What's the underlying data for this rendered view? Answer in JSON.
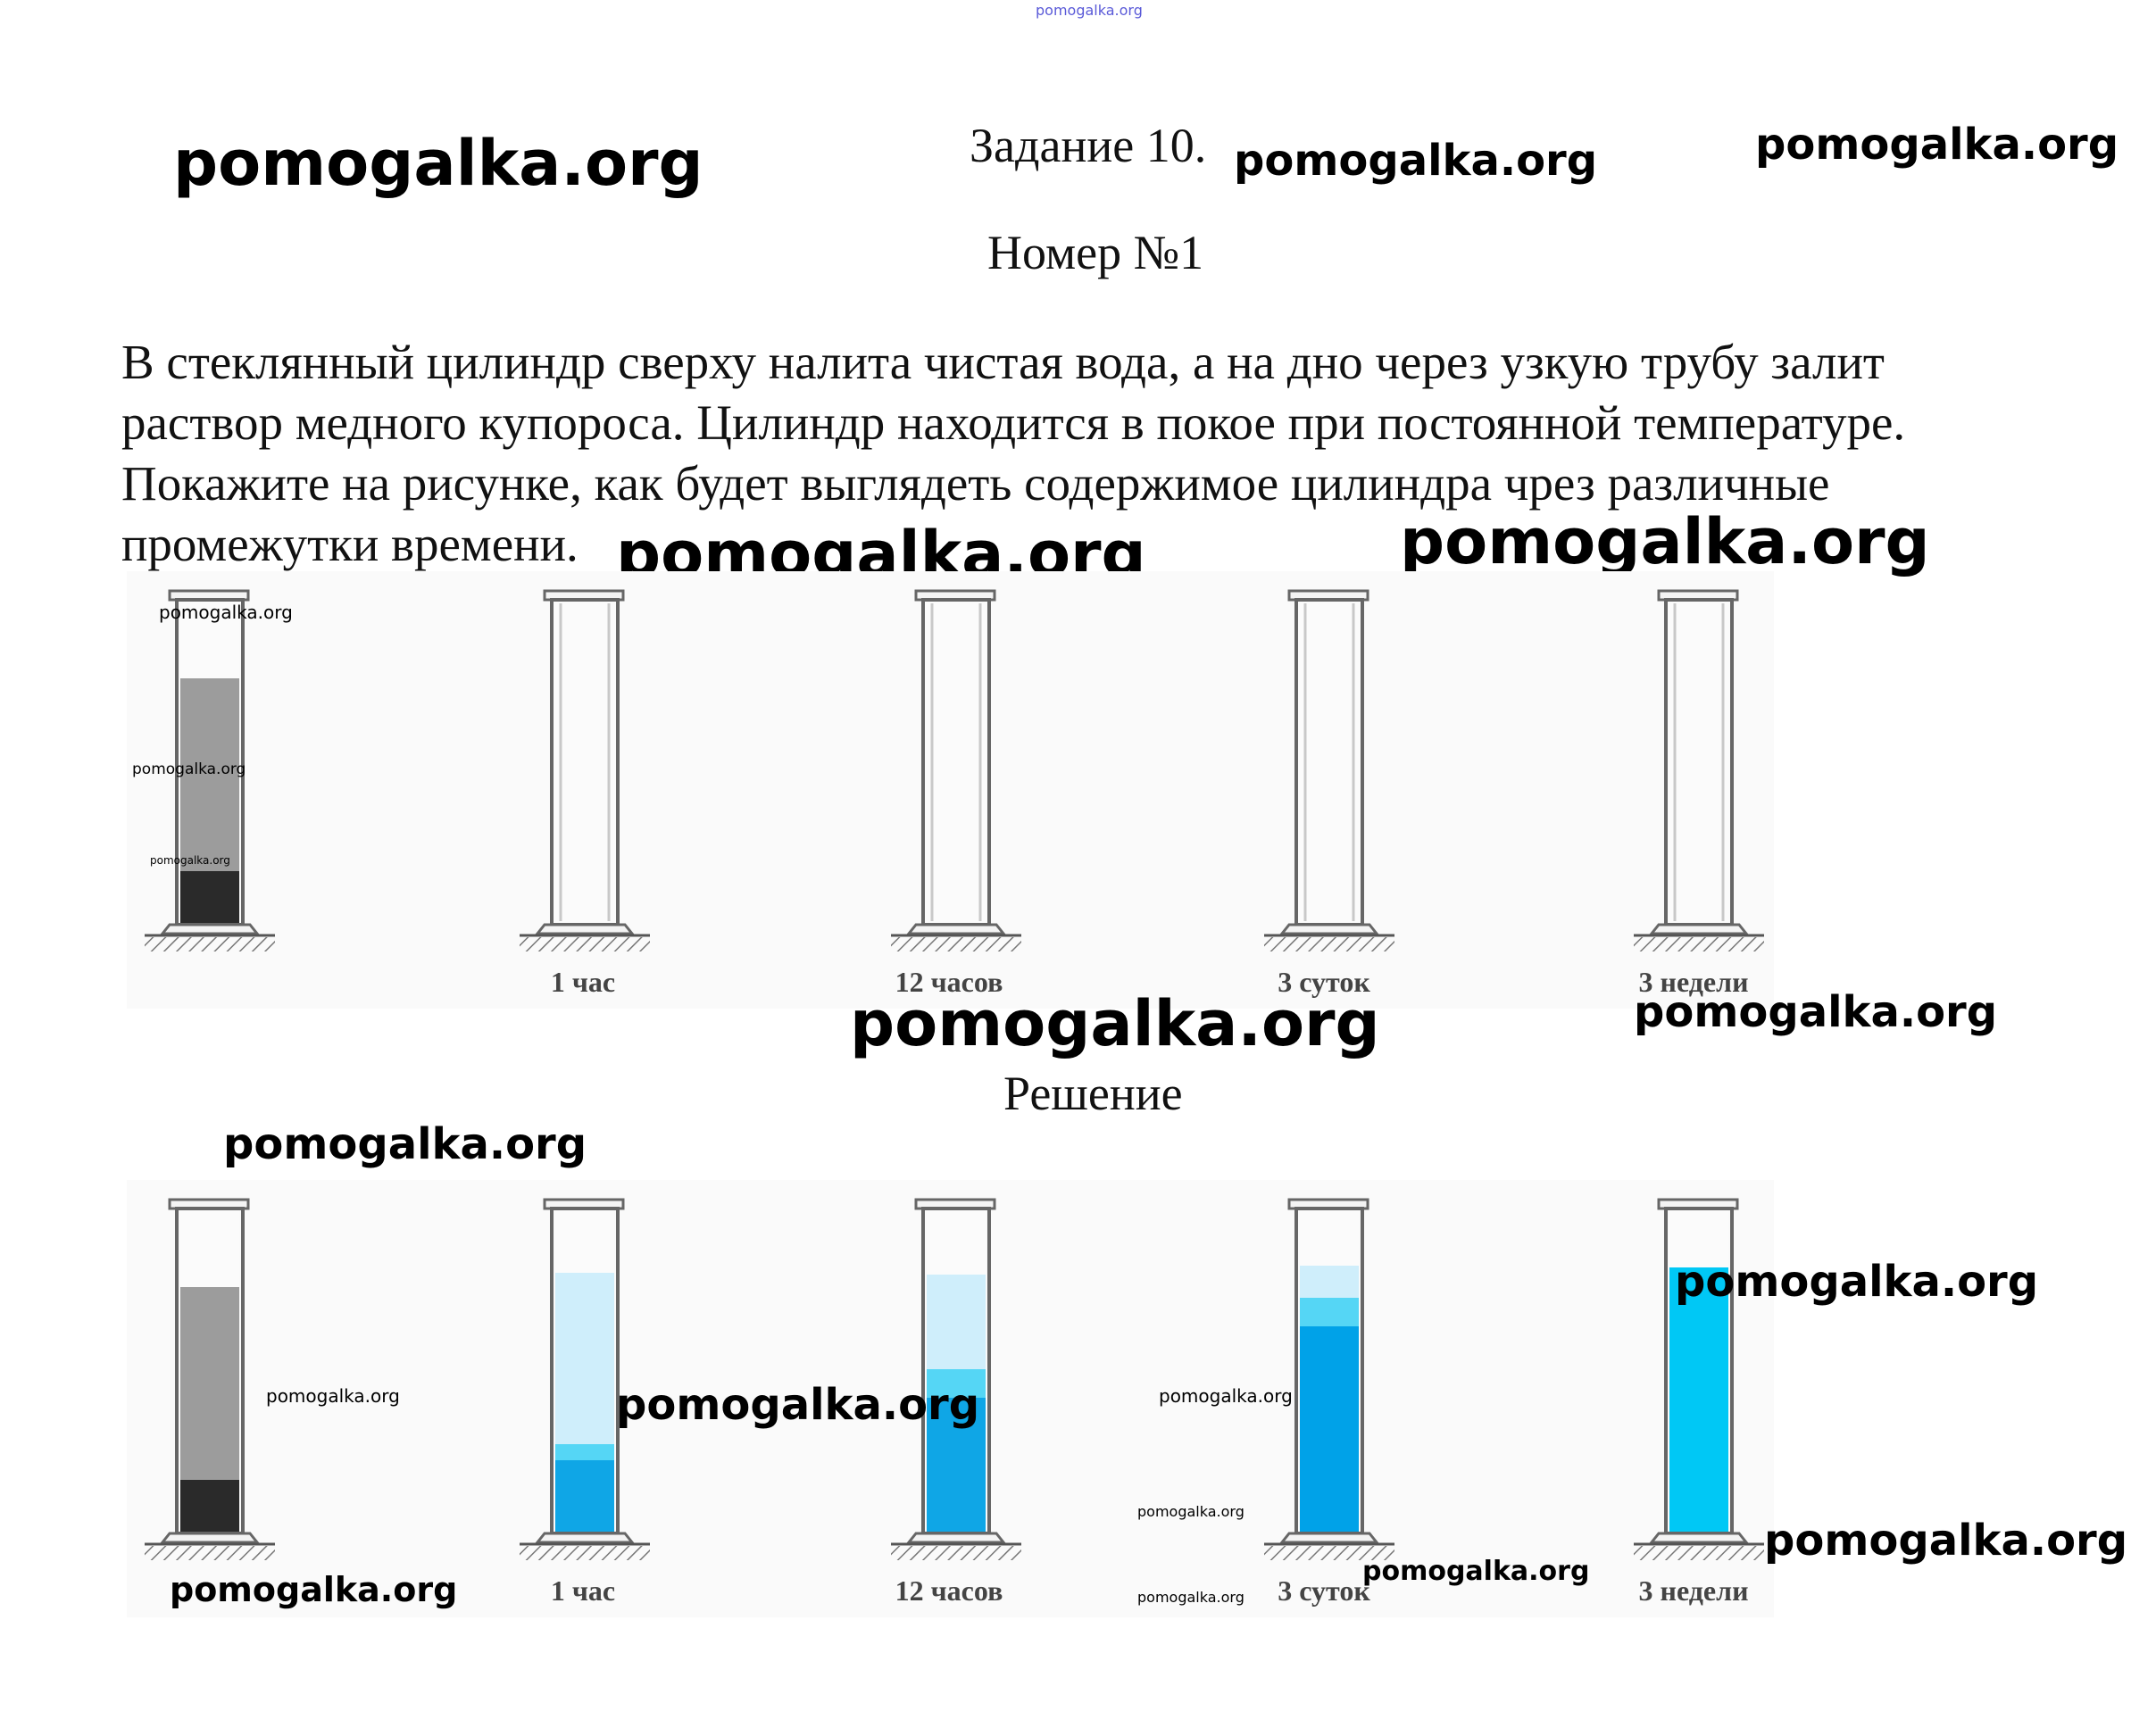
{
  "header": {
    "task_title": "Задание 10.",
    "number_title": "Номер №1"
  },
  "problem": {
    "lines": [
      "В стеклянный цилиндр сверху налита чистая вода, а на дно через узкую трубу залит",
      "раствор медного купороса. Цилиндр находится в покое при постоянной температуре.",
      "Покажите на рисунке, как будет выглядеть содержимое цилиндра чрез различные",
      "промежутки времени."
    ]
  },
  "question_figure": {
    "labels": [
      "1 час",
      "12 часов",
      "3 суток",
      "3 недели"
    ]
  },
  "solution": {
    "title": "Решение",
    "labels": [
      "1 час",
      "12 часов",
      "3 суток",
      "3 недели"
    ]
  },
  "watermark": {
    "text": "pomogalka.org"
  },
  "colors": {
    "page_background": "#ffffff",
    "figure_background": "#fafafa",
    "water": "#cfeefb",
    "diffusion_band": "#55d6f5",
    "solution_medium": "#0fa6e6",
    "solution_dark": "#00a2e8",
    "solution_uniform": "#00c8f5",
    "gray_layer": "#9c9c9c",
    "dark_layer": "#2a2a2a"
  }
}
